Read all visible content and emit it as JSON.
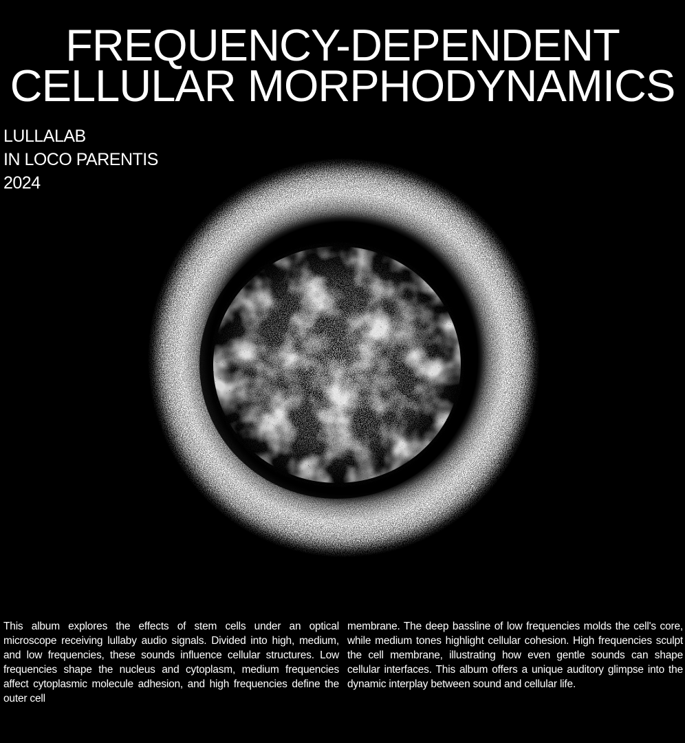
{
  "title": {
    "line1": "FREQUENCY-DEPENDENT",
    "line2": "CELLULAR MORPHODYNAMICS"
  },
  "meta": {
    "artist": "LULLALAB",
    "album": "IN LOCO PARENTIS",
    "year": "2024"
  },
  "description": {
    "column1": "This album explores the effects of stem cells under an optical microscope receiving lullaby audio signals. Divided into high, medium, and low frequencies, these sounds influence cellular structures. Low frequencies shape the nucleus and cytoplasm, medium frequencies affect cytoplasmic molecule adhesion, and high frequencies define the outer cell",
    "column2": "membrane. The deep bassline of low frequencies molds the cell's core, while medium tones highlight cellular cohesion. High frequencies sculpt the cell membrane, illustrating how even gentle sounds can shape cellular interfaces. This album offers a unique auditory glimpse into the dynamic interplay between sound and cellular life."
  },
  "colors": {
    "background": "#000000",
    "foreground": "#ffffff"
  }
}
